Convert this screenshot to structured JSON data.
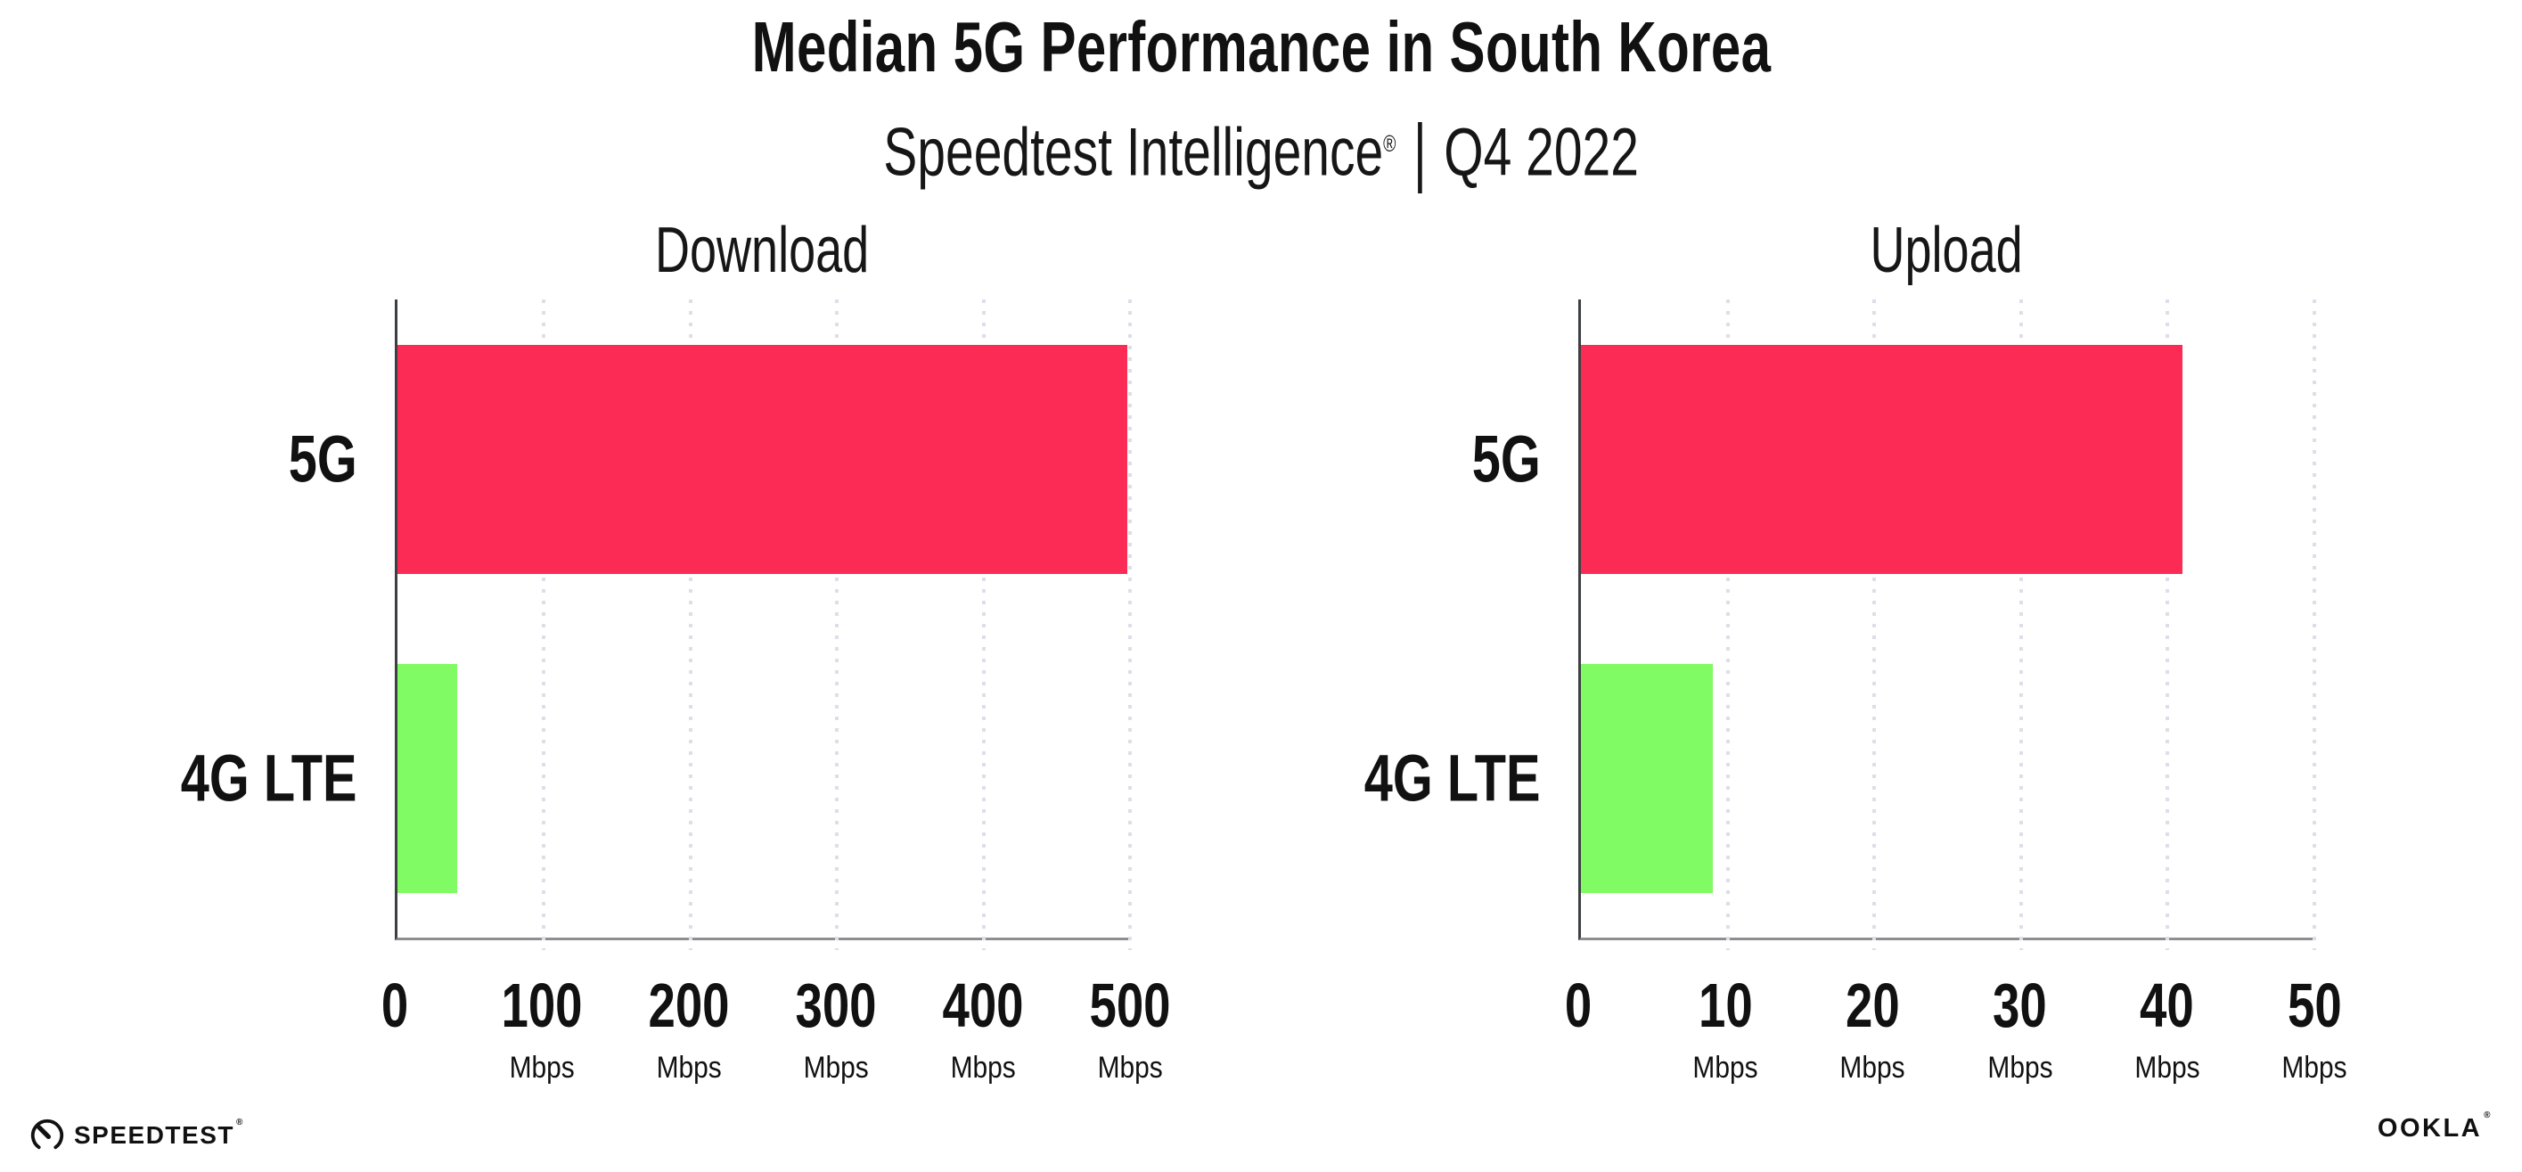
{
  "header": {
    "title": "Median 5G Performance in South Korea",
    "subtitle_brand": "Speedtest Intelligence",
    "subtitle_reg_mark": "®",
    "subtitle_separator": "|",
    "subtitle_period": "Q4 2022"
  },
  "chart_data": [
    {
      "type": "bar",
      "orientation": "horizontal",
      "title": "Download",
      "categories": [
        "5G",
        "4G LTE"
      ],
      "values": [
        498,
        41
      ],
      "unit": "Mbps",
      "xlim": [
        0,
        500
      ],
      "xticks": [
        0,
        100,
        200,
        300,
        400,
        500
      ],
      "bar_colors": [
        "#FC2B55",
        "#80FB64"
      ],
      "grid": "vertical-dotted",
      "legend": "none"
    },
    {
      "type": "bar",
      "orientation": "horizontal",
      "title": "Upload",
      "categories": [
        "5G",
        "4G LTE"
      ],
      "values": [
        41,
        9
      ],
      "unit": "Mbps",
      "xlim": [
        0,
        50
      ],
      "xticks": [
        0,
        10,
        20,
        30,
        40,
        50
      ],
      "bar_colors": [
        "#FC2B55",
        "#80FB64"
      ],
      "grid": "vertical-dotted",
      "legend": "none"
    }
  ],
  "colors": {
    "bar_5g": "#FC2B55",
    "bar_4g_lte": "#80FB64",
    "axis_left": "#3d4043",
    "axis_bottom": "#8e8e92",
    "gridline": "#dedee9",
    "text": "#111111"
  },
  "footer": {
    "speedtest_text": "SPEEDTEST",
    "speedtest_mark": "®",
    "ookla_text": "OOKLA",
    "ookla_mark": "®"
  }
}
